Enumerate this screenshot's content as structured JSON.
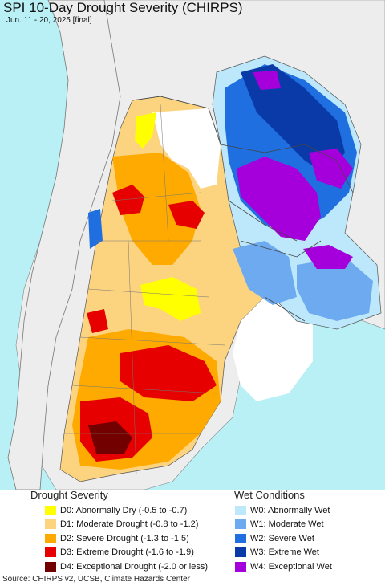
{
  "title": "SPI 10-Day Drought Severity (CHIRPS)",
  "subtitle": "Jun. 11 - 20, 2025 [final]",
  "colors": {
    "ocean": "#b8f0f5",
    "land_outside": "#ededed",
    "border": "#555555"
  },
  "legend": {
    "drought": {
      "heading": "Drought Severity",
      "items": [
        {
          "label": "D0: Abnormally Dry (-0.5 to -0.7)",
          "color": "#ffff00"
        },
        {
          "label": "D1: Moderate Drought (-0.8 to -1.2)",
          "color": "#fcd37f"
        },
        {
          "label": "D2: Severe Drought (-1.3 to -1.5)",
          "color": "#ffaa00"
        },
        {
          "label": "D3: Extreme Drought (-1.6 to -1.9)",
          "color": "#e60000"
        },
        {
          "label": "D4: Exceptional Drought (-2.0 or less)",
          "color": "#730000"
        }
      ]
    },
    "wet": {
      "heading": "Wet Conditions",
      "items": [
        {
          "label": "W0: Abnormally Wet",
          "color": "#bde8fb"
        },
        {
          "label": "W1: Moderate Wet",
          "color": "#6eaaf0"
        },
        {
          "label": "W2: Severe Wet",
          "color": "#1f6fe0"
        },
        {
          "label": "W3: Extreme Wet",
          "color": "#0a3aa8"
        },
        {
          "label": "W4: Exceptional Wet",
          "color": "#a500dc"
        }
      ]
    }
  },
  "source": "Source: CHIRPS v2, UCSB, Climate Hazards Center"
}
